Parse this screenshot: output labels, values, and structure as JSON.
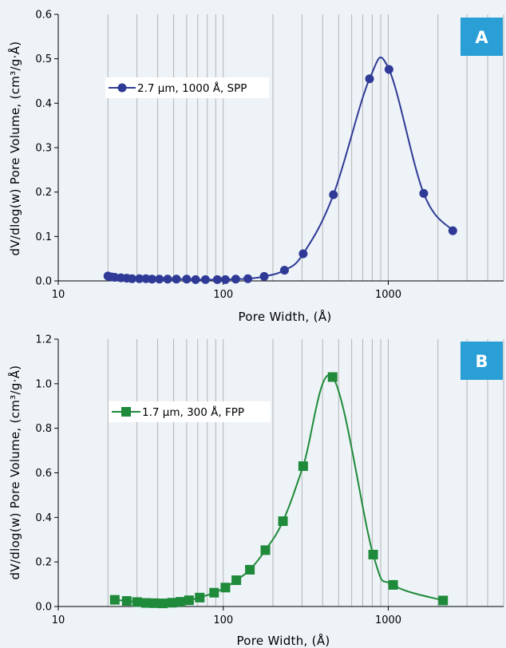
{
  "chart_data": [
    {
      "type": "scatter",
      "panel": "A",
      "xlabel": "Pore Width, (Å)",
      "ylabel": "dV/dlog(w) Pore Volume, (cm³/g·Å)",
      "x_scale": "log",
      "xlim": [
        10,
        5000
      ],
      "ylim": [
        0,
        0.6
      ],
      "y_ticks": [
        "0.0",
        "0.1",
        "0.2",
        "0.3",
        "0.4",
        "0.5",
        "0.6"
      ],
      "x_ticks": [
        "10",
        "100",
        "1000"
      ],
      "grid": "vertical log gridlines",
      "legend_position": "top-left",
      "marker": "circle",
      "color": "#2e3a96",
      "series": [
        {
          "name": "2.7 µm, 1000 Å, SPP",
          "x": [
            20,
            21,
            22,
            24,
            26,
            28,
            31,
            34,
            37,
            41,
            46,
            52,
            60,
            68,
            78,
            92,
            103,
            119,
            141,
            177,
            235,
            305,
            465,
            770,
            1010,
            1640,
            2460
          ],
          "y": [
            0.011,
            0.009,
            0.008,
            0.007,
            0.006,
            0.005,
            0.005,
            0.005,
            0.004,
            0.004,
            0.004,
            0.004,
            0.004,
            0.003,
            0.003,
            0.003,
            0.003,
            0.004,
            0.005,
            0.01,
            0.024,
            0.061,
            0.194,
            0.455,
            0.476,
            0.197,
            0.113
          ]
        }
      ]
    },
    {
      "type": "scatter",
      "panel": "B",
      "xlabel": "Pore Width, (Å)",
      "ylabel": "dV/dlog(w) Pore Volume, (cm³/g·Å)",
      "x_scale": "log",
      "xlim": [
        10,
        5000
      ],
      "ylim": [
        0,
        1.2
      ],
      "y_ticks": [
        "0.0",
        "0.2",
        "0.4",
        "0.6",
        "0.8",
        "1.0",
        "1.2"
      ],
      "x_ticks": [
        "10",
        "100",
        "1000"
      ],
      "grid": "vertical log gridlines",
      "legend_position": "top-left",
      "marker": "square",
      "color": "#1e8a3a",
      "series": [
        {
          "name": "1.7 µm, 300 Å, FPP",
          "x": [
            22,
            26,
            30,
            34,
            38,
            43,
            49,
            55,
            62,
            72,
            88,
            103,
            120,
            145,
            180,
            230,
            305,
            460,
            810,
            1070,
            2150
          ],
          "y": [
            0.03,
            0.025,
            0.02,
            0.016,
            0.015,
            0.014,
            0.017,
            0.021,
            0.028,
            0.04,
            0.062,
            0.085,
            0.118,
            0.165,
            0.253,
            0.383,
            0.63,
            1.03,
            0.233,
            0.097,
            0.027
          ]
        }
      ]
    }
  ],
  "panels": [
    {
      "badge": "A",
      "xlabel": "Pore Width, (Å)",
      "ylabel": "dV/dlog(w) Pore Volume, (cm³/g·Å)",
      "legend": "2.7 µm, 1000 Å, SPP"
    },
    {
      "badge": "B",
      "xlabel": "Pore Width, (Å)",
      "ylabel": "dV/dlog(w) Pore Volume, (cm³/g·Å)",
      "legend": "1.7 µm, 300 Å, FPP"
    }
  ],
  "colors": {
    "background": "#eef3f8",
    "badge": "#2a9fd6",
    "series_a": "#2e3a96",
    "series_b": "#1e8a3a",
    "grid": "#b4b4b4"
  }
}
